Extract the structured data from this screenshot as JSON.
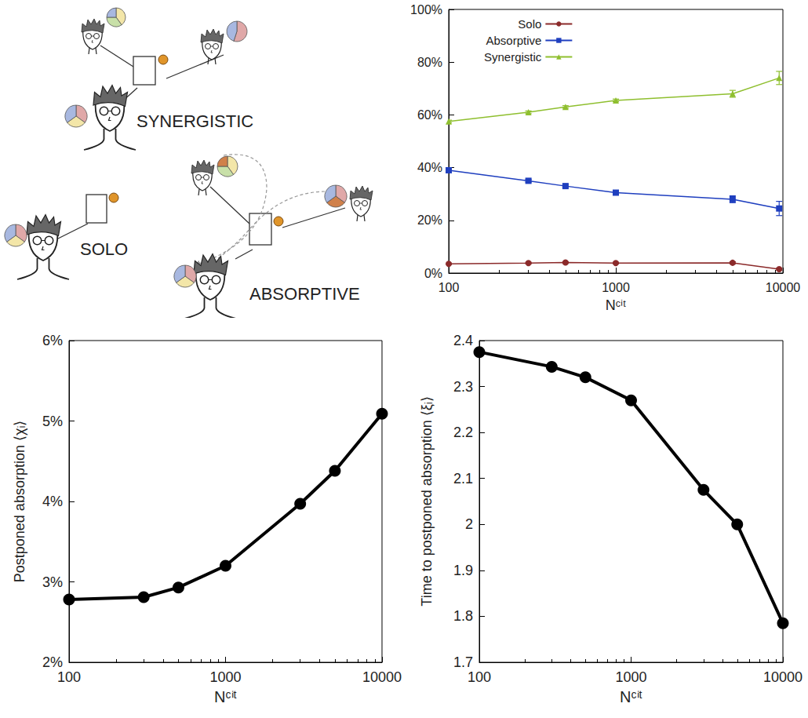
{
  "diagram": {
    "labels": [
      "SYNERGISTIC",
      "SOLO",
      "ABSORPTIVE"
    ]
  },
  "chart_data": [
    {
      "type": "line",
      "xlabel": "Nᶜⁱᵗ",
      "log": "x",
      "grid": false,
      "legend": "upper left",
      "x": [
        100,
        300,
        500,
        1000,
        5000,
        9500
      ],
      "xlim": [
        100,
        10000
      ],
      "xticks": [
        100,
        1000,
        10000
      ],
      "ylim": [
        0,
        100
      ],
      "yticks": [
        {
          "value": 0,
          "label": "0%"
        },
        {
          "value": 20,
          "label": "20%"
        },
        {
          "value": 40,
          "label": "40%"
        },
        {
          "value": 60,
          "label": "60%"
        },
        {
          "value": 80,
          "label": "80%"
        },
        {
          "value": 100,
          "label": "100%"
        }
      ],
      "series": [
        {
          "name": "Solo",
          "color": "#8b2a2a",
          "marker": "circle",
          "values": [
            3.5,
            3.8,
            4.0,
            3.8,
            3.9,
            1.5
          ],
          "errors": [
            0.3,
            0.3,
            0.3,
            0.3,
            0.4,
            0.4
          ]
        },
        {
          "name": "Absorptive",
          "color": "#1f3fbf",
          "marker": "square",
          "values": [
            39,
            35,
            33,
            30.5,
            28,
            24.5
          ],
          "errors": [
            0.7,
            0.5,
            0.5,
            0.5,
            1.3,
            2.7
          ]
        },
        {
          "name": "Synergistic",
          "color": "#8fbf2f",
          "marker": "triangle",
          "values": [
            57.5,
            61,
            63,
            65.5,
            68,
            74
          ],
          "errors": [
            0.5,
            0.5,
            0.5,
            0.5,
            1.3,
            2.5
          ]
        }
      ]
    },
    {
      "type": "line",
      "xlabel": "Nᶜⁱᵗ",
      "ylabel": "Postponed absorption ⟨χᵢ⟩",
      "log": "x",
      "grid": false,
      "x": [
        100,
        300,
        500,
        1000,
        3000,
        5000,
        10000
      ],
      "values": [
        2.78,
        2.81,
        2.93,
        3.2,
        3.97,
        4.38,
        5.09
      ],
      "color": "#000000",
      "marker": "circle",
      "xlim": [
        100,
        10000
      ],
      "xticks": [
        100,
        1000,
        10000
      ],
      "ylim": [
        2,
        6
      ],
      "yticks": [
        {
          "value": 2,
          "label": "2%"
        },
        {
          "value": 3,
          "label": "3%"
        },
        {
          "value": 4,
          "label": "4%"
        },
        {
          "value": 5,
          "label": "5%"
        },
        {
          "value": 6,
          "label": "6%"
        }
      ]
    },
    {
      "type": "line",
      "xlabel": "Nᶜⁱᵗ",
      "ylabel": "Time to postponed absorption ⟨ξᵢ⟩",
      "log": "x",
      "grid": false,
      "x": [
        100,
        300,
        500,
        1000,
        3000,
        5000,
        10000
      ],
      "values": [
        2.375,
        2.343,
        2.32,
        2.27,
        2.075,
        2.0,
        1.785
      ],
      "color": "#000000",
      "marker": "circle",
      "xlim": [
        100,
        10000
      ],
      "xticks": [
        100,
        1000,
        10000
      ],
      "ylim": [
        1.7,
        2.4
      ],
      "yticks": [
        1.7,
        1.8,
        1.9,
        2,
        2.1,
        2.2,
        2.3,
        2.4
      ]
    }
  ]
}
